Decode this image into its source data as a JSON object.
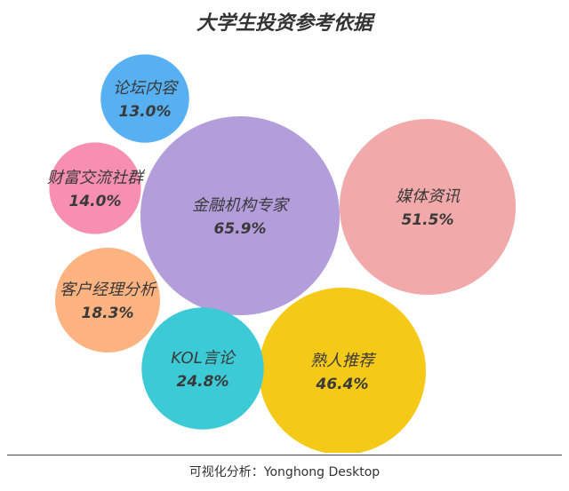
{
  "chart_data": {
    "type": "bubble",
    "title": "大学生投资参考依据",
    "items": [
      {
        "name": "金融机构专家",
        "value": 65.9,
        "label": "65.9%",
        "color": "#b39ddb"
      },
      {
        "name": "媒体资讯",
        "value": 51.5,
        "label": "51.5%",
        "color": "#f2a9a9"
      },
      {
        "name": "熟人推荐",
        "value": 46.4,
        "label": "46.4%",
        "color": "#f5c918"
      },
      {
        "name": "KOL言论",
        "value": 24.8,
        "label": "24.8%",
        "color": "#3ccbd6"
      },
      {
        "name": "客户经理分析",
        "value": 18.3,
        "label": "18.3%",
        "color": "#ffb380"
      },
      {
        "name": "财富交流社群",
        "value": 14.0,
        "label": "14.0%",
        "color": "#f78fb3"
      },
      {
        "name": "论坛内容",
        "value": 13.0,
        "label": "13.0%",
        "color": "#56b0f2"
      }
    ]
  },
  "footer": {
    "source": "可视化分析：Yonghong Desktop"
  }
}
